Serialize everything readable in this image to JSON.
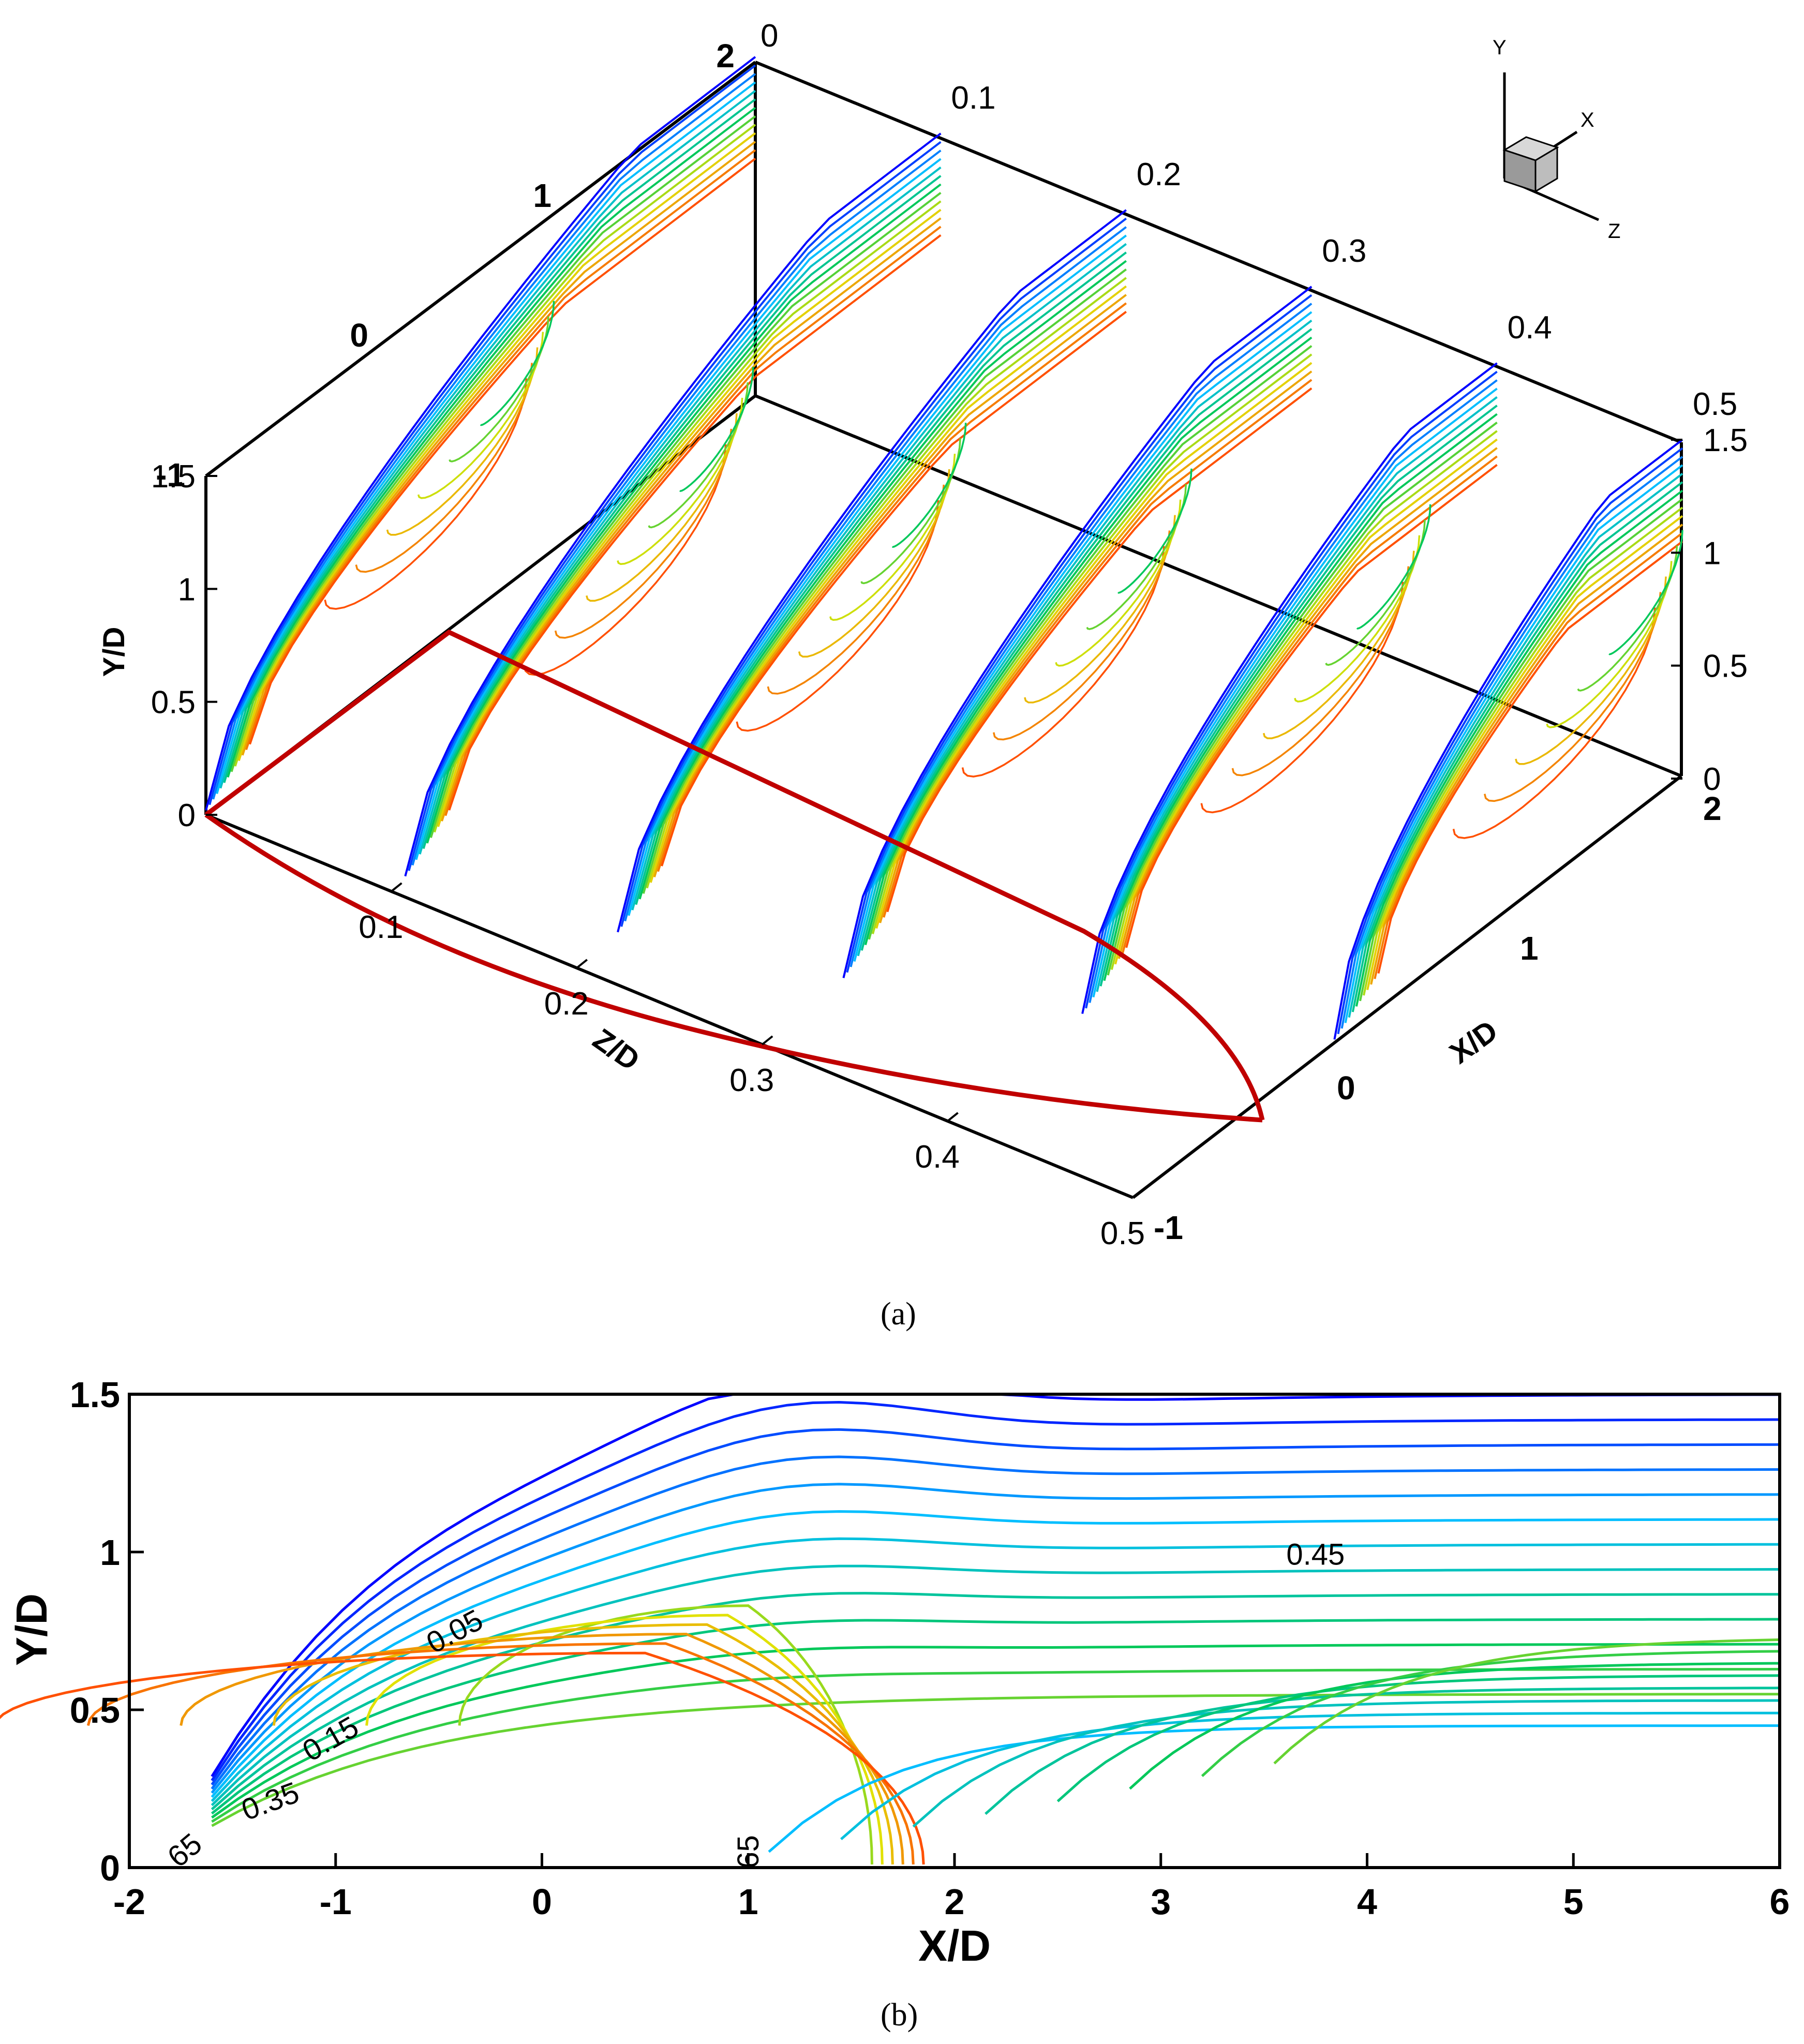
{
  "chart_data": [
    {
      "type": "contour",
      "panel": "a",
      "caption": "(a)",
      "axes": {
        "x": {
          "label": "X/D",
          "range": [
            -1,
            2
          ],
          "ticks": [
            "-1",
            "0",
            "1",
            "2"
          ]
        },
        "y": {
          "label": "Y/D",
          "range": [
            0,
            1.5
          ],
          "ticks": [
            "0",
            "0.5",
            "1",
            "1.5"
          ]
        },
        "z": {
          "label": "Z/D",
          "range": [
            0,
            0.5
          ],
          "ticks": [
            "0",
            "0.1",
            "0.2",
            "0.3",
            "0.4",
            "0.5"
          ]
        }
      },
      "slices_at_z": [
        0,
        0.1,
        0.2,
        0.3,
        0.4,
        0.5
      ],
      "levels": [
        0.05,
        0.1,
        0.15,
        0.2,
        0.25,
        0.3,
        0.35,
        0.4,
        0.45,
        0.5,
        0.55,
        0.6,
        0.65
      ],
      "triad_labels": [
        "Y",
        "X",
        "Z"
      ]
    },
    {
      "type": "contour",
      "panel": "b",
      "caption": "(b)",
      "xlabel": "X/D",
      "ylabel": "Y/D",
      "xlim": [
        -2,
        6
      ],
      "ylim": [
        0,
        1.5
      ],
      "xticks": [
        "-2",
        "-1",
        "0",
        "1",
        "2",
        "3",
        "4",
        "5",
        "6"
      ],
      "yticks": [
        "0",
        "0.5",
        "1",
        "1.5"
      ],
      "levels": [
        0.05,
        0.1,
        0.15,
        0.2,
        0.25,
        0.3,
        0.35,
        0.4,
        0.45,
        0.5,
        0.55,
        0.6,
        0.65
      ],
      "contour_labels": [
        "0.05",
        "0.15",
        "0.35",
        "0.45",
        "65",
        "65"
      ]
    }
  ],
  "colors": {
    "low": "#0000ff",
    "mid": "#00c864",
    "high": "#ff5000",
    "outline": "#c00000",
    "axis": "#000000"
  }
}
